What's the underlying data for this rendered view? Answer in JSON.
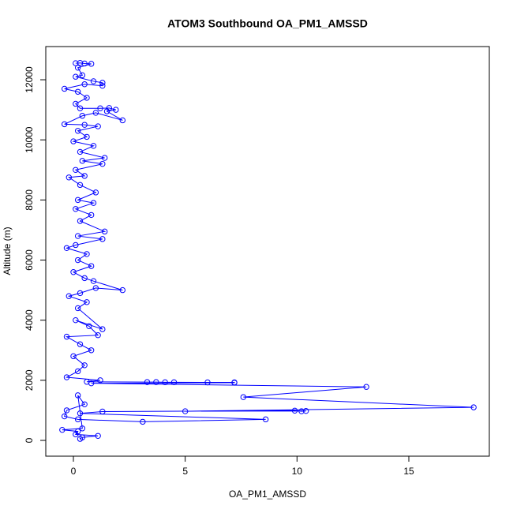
{
  "chart_data": {
    "type": "scatter",
    "lines": true,
    "title": "ATOM3 Southbound OA_PM1_AMSSD",
    "xlabel": "OA_PM1_AMSSD",
    "ylabel": "Altitude (m)",
    "color": "blue",
    "xlim": [
      -1.235,
      18.6
    ],
    "ylim": [
      -525,
      13104
    ],
    "xticks": [
      0,
      5,
      10,
      15
    ],
    "yticks": [
      0,
      2000,
      4000,
      6000,
      8000,
      10000,
      12000
    ],
    "grid": false,
    "x": [
      0.1,
      0.3,
      0.5,
      0.8,
      0.2,
      0.4,
      0.1,
      0.9,
      1.3,
      1.3,
      0.5,
      -0.4,
      0.2,
      0.6,
      0.1,
      0.3,
      1.2,
      1.6,
      1.9,
      1.5,
      2.2,
      1.0,
      0.4,
      -0.4,
      0.5,
      1.1,
      0.2,
      0.6,
      0.0,
      0.9,
      0.3,
      1.4,
      0.4,
      1.3,
      0.1,
      0.5,
      -0.2,
      0.3,
      1.0,
      0.2,
      0.9,
      0.1,
      0.8,
      0.3,
      1.4,
      0.2,
      1.3,
      0.1,
      -0.3,
      0.6,
      0.2,
      0.8,
      0.0,
      0.5,
      0.9,
      2.2,
      1.0,
      0.3,
      -0.2,
      0.6,
      0.2,
      1.3,
      0.1,
      0.7,
      1.1,
      -0.3,
      0.3,
      0.8,
      0.0,
      0.5,
      0.2,
      -0.3,
      1.2,
      0.6,
      3.3,
      3.7,
      4.1,
      4.5,
      6.0,
      7.2,
      7.2,
      0.8,
      13.1,
      7.6,
      17.9,
      5.0,
      10.4,
      10.2,
      9.9,
      1.3,
      0.3,
      8.6,
      3.1,
      0.2,
      -0.4,
      -0.3,
      0.5,
      0.2,
      0.4,
      -0.5,
      0.2,
      0.1,
      1.1,
      0.4,
      0.3
    ],
    "values": [
      12550,
      12560,
      12540,
      12530,
      12400,
      12150,
      12100,
      11950,
      11900,
      11800,
      11850,
      11700,
      11600,
      11400,
      11200,
      11050,
      11050,
      11060,
      11000,
      10950,
      10650,
      10900,
      10800,
      10520,
      10500,
      10450,
      10300,
      10100,
      9950,
      9800,
      9600,
      9400,
      9300,
      9200,
      9000,
      8800,
      8750,
      8500,
      8250,
      8000,
      7900,
      7700,
      7500,
      7300,
      6950,
      6800,
      6700,
      6500,
      6400,
      6200,
      6000,
      5800,
      5600,
      5400,
      5300,
      5000,
      5070,
      4900,
      4800,
      4600,
      4400,
      3700,
      4000,
      3800,
      3500,
      3450,
      3200,
      3000,
      2800,
      2500,
      2300,
      2100,
      2000,
      1950,
      1940,
      1940,
      1935,
      1935,
      1930,
      1930,
      1920,
      1900,
      1780,
      1440,
      1100,
      970,
      980,
      970,
      990,
      960,
      900,
      700,
      620,
      700,
      800,
      1000,
      1200,
      1500,
      400,
      350,
      300,
      200,
      150,
      100,
      50
    ]
  }
}
